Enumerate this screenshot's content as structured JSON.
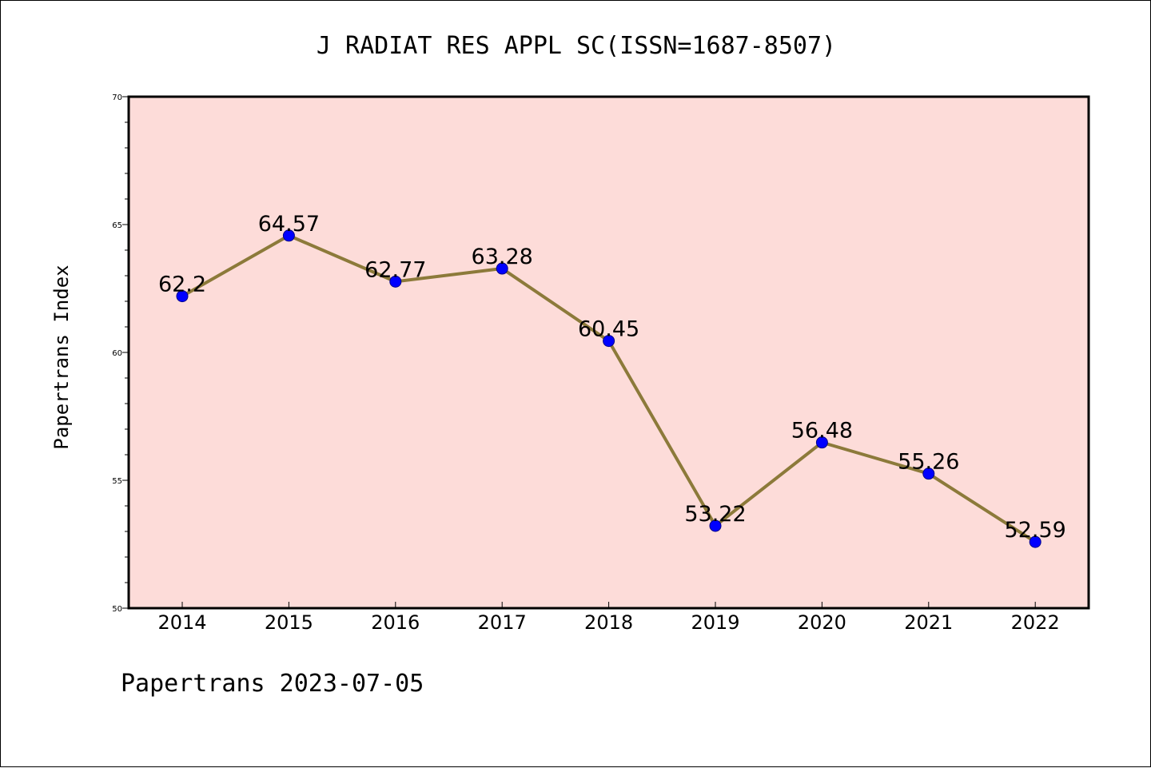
{
  "chart_data": {
    "type": "line",
    "title": "J RADIAT RES APPL SC(ISSN=1687-8507)",
    "ylabel": "Papertrans Index",
    "xlabel": "",
    "footer": "Papertrans 2023-07-05",
    "categories": [
      "2014",
      "2015",
      "2016",
      "2017",
      "2018",
      "2019",
      "2020",
      "2021",
      "2022"
    ],
    "values": [
      62.2,
      64.57,
      62.77,
      63.28,
      60.45,
      53.22,
      56.48,
      55.26,
      52.59
    ],
    "data_labels": [
      "62.2",
      "64.57",
      "62.77",
      "63.28",
      "60.45",
      "53.22",
      "56.48",
      "55.26",
      "52.59"
    ],
    "ylim": [
      50,
      70
    ],
    "yticks": [
      "50",
      "55",
      "60",
      "65",
      "70"
    ],
    "grid": false,
    "colors": {
      "plot_background": "#fddcd9",
      "line": "#8c7a3a",
      "marker": "#0000ff",
      "marker_edge": "#00008b",
      "text": "#000000"
    }
  }
}
